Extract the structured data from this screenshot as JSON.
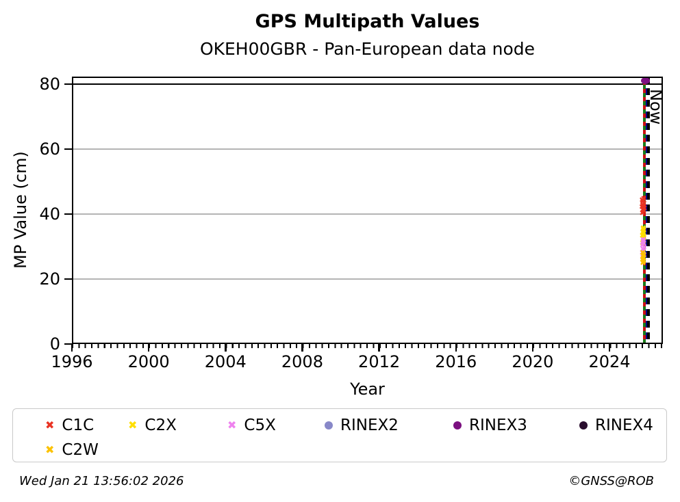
{
  "header": {
    "title": "GPS Multipath Values",
    "subtitle": "OKEH00GBR - Pan-European data node"
  },
  "footer": {
    "timestamp": "Wed Jan 21 13:56:02 2026",
    "credit": "©GNSS@ROB"
  },
  "legend": {
    "rows": [
      [
        {
          "label": "C1C",
          "marker": "x",
          "color": "#e93323"
        },
        {
          "label": "C2X",
          "marker": "x",
          "color": "#ffdf00"
        },
        {
          "label": "C5X",
          "marker": "x",
          "color": "#ee82ee"
        },
        {
          "label": "RINEX2",
          "marker": "dot",
          "color": "#8888c8"
        },
        {
          "label": "RINEX3",
          "marker": "dot",
          "color": "#7b1080"
        },
        {
          "label": "RINEX4",
          "marker": "dot",
          "color": "#2a0e2e"
        }
      ],
      [
        {
          "label": "C2W",
          "marker": "x",
          "color": "#fcc200"
        }
      ]
    ]
  },
  "chart_data": {
    "type": "scatter",
    "title": "GPS Multipath Values",
    "subtitle": "OKEH00GBR - Pan-European data node",
    "xlabel": "Year",
    "ylabel": "MP Value (cm)",
    "xlim": [
      1996,
      2026.78
    ],
    "ylim": [
      0,
      82.3
    ],
    "x_major_ticks": [
      1996,
      2000,
      2004,
      2008,
      2012,
      2016,
      2020,
      2024
    ],
    "y_major_ticks": [
      0,
      20,
      40,
      60,
      80
    ],
    "x_minor_tick_interval_years": 0.3333,
    "grid": "horizontal-only",
    "grid_color": "#b4b4b4",
    "threshold_line": {
      "value": 80,
      "color": "#000000"
    },
    "vlines": [
      {
        "year": 2025.81,
        "style": "dash-green-over-red",
        "colors": [
          "#1a7a1a",
          "#cc1010"
        ],
        "label": ""
      },
      {
        "year": 2025.94,
        "style": "dashed",
        "color": "#00008b",
        "label": ""
      },
      {
        "year": 2026.0,
        "style": "dashed",
        "color": "#000000",
        "label": "Now"
      }
    ],
    "legend_position": "below",
    "series": [
      {
        "name": "C2X",
        "marker": "x",
        "color": "#ffdf00",
        "points": [
          [
            2025.77,
            30.9
          ],
          [
            2025.83,
            31.5
          ],
          [
            2025.79,
            32.1
          ],
          [
            2025.85,
            32.7
          ],
          [
            2025.76,
            33.3
          ],
          [
            2025.82,
            33.9
          ],
          [
            2025.78,
            34.4
          ],
          [
            2025.84,
            34.9
          ],
          [
            2025.8,
            35.3
          ],
          [
            2025.81,
            35.6
          ],
          [
            2025.79,
            33.0
          ],
          [
            2025.83,
            34.0
          ]
        ]
      },
      {
        "name": "C5X",
        "marker": "x",
        "color": "#ee82ee",
        "points": [
          [
            2025.78,
            26.6
          ],
          [
            2025.84,
            27.2
          ],
          [
            2025.76,
            27.9
          ],
          [
            2025.82,
            28.5
          ],
          [
            2025.79,
            29.1
          ],
          [
            2025.85,
            29.7
          ],
          [
            2025.77,
            30.3
          ],
          [
            2025.83,
            30.9
          ],
          [
            2025.8,
            31.5
          ],
          [
            2025.81,
            32.0
          ]
        ]
      },
      {
        "name": "C2W",
        "marker": "x",
        "color": "#fcc200",
        "points": [
          [
            2025.79,
            24.9
          ],
          [
            2025.83,
            25.4
          ],
          [
            2025.77,
            25.9
          ],
          [
            2025.82,
            26.4
          ],
          [
            2025.8,
            26.9
          ],
          [
            2025.84,
            27.4
          ],
          [
            2025.78,
            27.9
          ],
          [
            2025.81,
            25.1
          ]
        ]
      },
      {
        "name": "C1C",
        "marker": "x",
        "color": "#e93323",
        "points": [
          [
            2025.76,
            40.3
          ],
          [
            2025.84,
            40.8
          ],
          [
            2025.79,
            41.2
          ],
          [
            2025.86,
            41.6
          ],
          [
            2025.74,
            42.0
          ],
          [
            2025.82,
            42.4
          ],
          [
            2025.77,
            42.8
          ],
          [
            2025.85,
            43.2
          ],
          [
            2025.8,
            43.7
          ],
          [
            2025.75,
            44.1
          ],
          [
            2025.83,
            44.6
          ],
          [
            2025.79,
            42.1
          ],
          [
            2025.81,
            41.0
          ],
          [
            2025.78,
            43.9
          ]
        ]
      },
      {
        "name": "RINEX2",
        "marker": "dot",
        "color": "#8888c8",
        "points": []
      },
      {
        "name": "RINEX3",
        "marker": "dot",
        "color": "#7b1080",
        "points": [
          [
            2025.88,
            81.1
          ]
        ]
      },
      {
        "name": "RINEX4",
        "marker": "dot",
        "color": "#2a0e2e",
        "points": []
      }
    ]
  }
}
